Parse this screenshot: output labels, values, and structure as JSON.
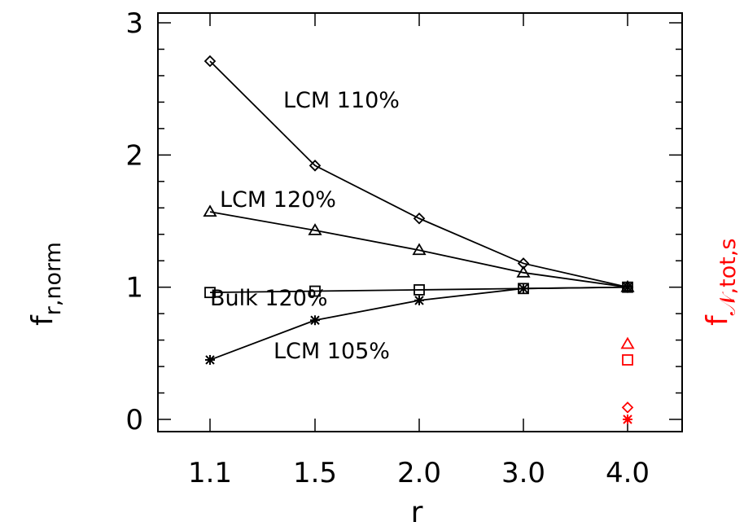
{
  "chart_data": {
    "type": "line",
    "xlabel": "r",
    "ylabel": "f",
    "ylabel_sub": "r,norm",
    "y2label": "f",
    "y2label_sub": "𝒩,tot,s",
    "y2color": "#ff0000",
    "categories": [
      "1.1",
      "1.5",
      "2.0",
      "3.0",
      "4.0"
    ],
    "ylim": [
      0,
      3
    ],
    "yticks": [
      0,
      1,
      2,
      3
    ],
    "grid": false,
    "series": [
      {
        "name": "LCM 110%",
        "marker": "diamond",
        "values": [
          2.71,
          1.92,
          1.52,
          1.18,
          1.0
        ]
      },
      {
        "name": "LCM 120%",
        "marker": "triangle",
        "values": [
          1.57,
          1.43,
          1.28,
          1.11,
          1.0
        ]
      },
      {
        "name": "Bulk 120%",
        "marker": "square",
        "values": [
          0.96,
          0.97,
          0.98,
          0.99,
          1.0
        ]
      },
      {
        "name": "LCM 105%",
        "marker": "asterisk",
        "values": [
          0.45,
          0.75,
          0.9,
          0.99,
          1.0
        ]
      }
    ],
    "right_points": [
      {
        "marker": "triangle",
        "x": "4.0",
        "value": 0.57
      },
      {
        "marker": "square",
        "x": "4.0",
        "value": 0.45
      },
      {
        "marker": "diamond",
        "x": "4.0",
        "value": 0.09
      },
      {
        "marker": "asterisk",
        "x": "4.0",
        "value": 0.0
      }
    ]
  }
}
